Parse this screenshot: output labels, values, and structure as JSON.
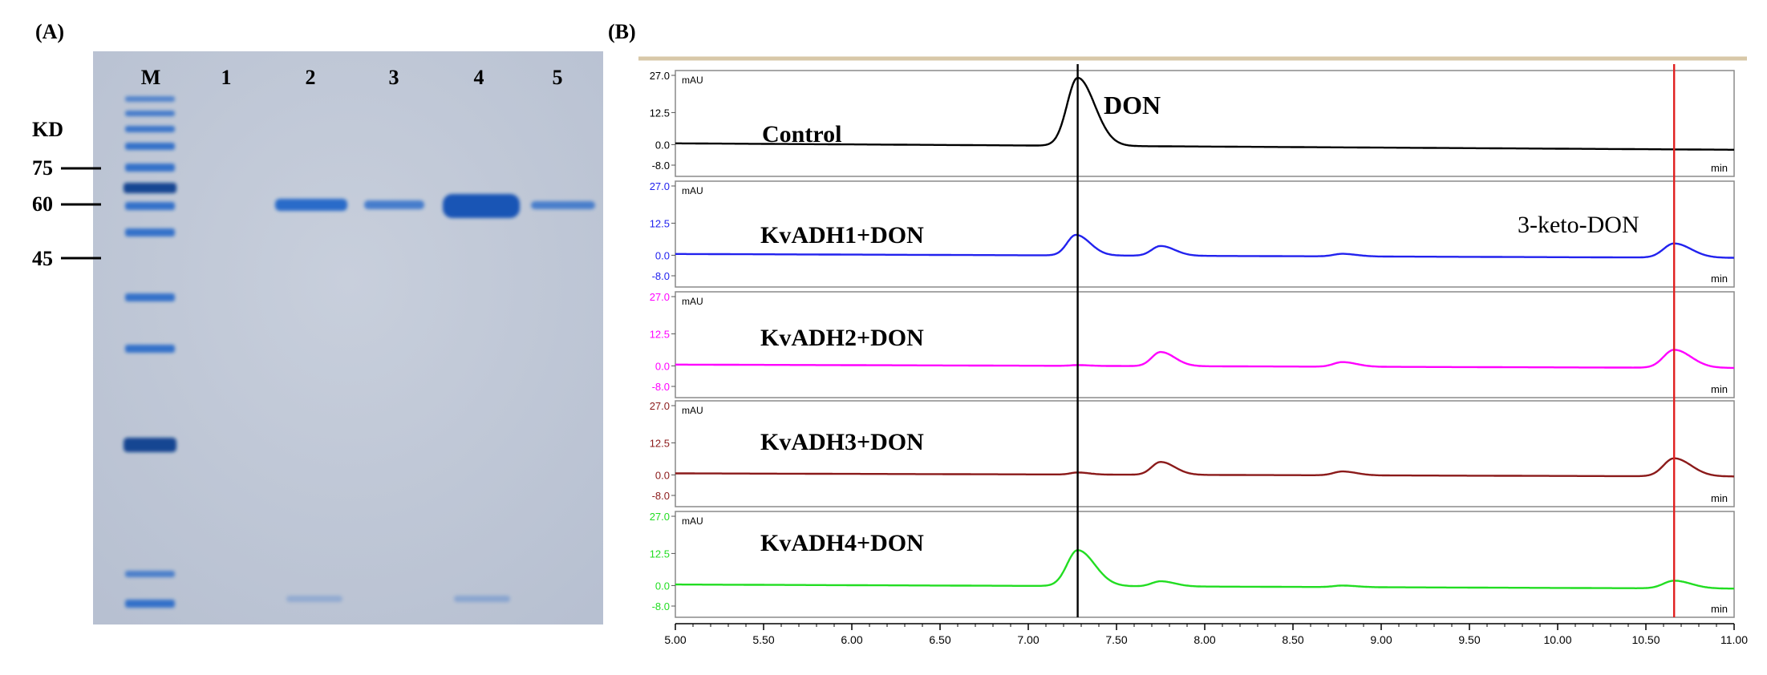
{
  "panel_a": {
    "label": "(A)",
    "lane_labels": [
      "M",
      "1",
      "2",
      "3",
      "4",
      "5"
    ],
    "kd_title": "KD",
    "kd_markers": [
      "75",
      "60",
      "45"
    ],
    "colors": {
      "gel_bg": "#c2cad8",
      "band": "#1d64c8",
      "band_dark": "#0e3f8f"
    }
  },
  "panel_b": {
    "label": "(B)",
    "chart_data": {
      "type": "line",
      "title": "",
      "xlabel": "min",
      "ylabel": "mAU",
      "xlim": [
        5.0,
        11.0
      ],
      "ylim": [
        -8.0,
        27.0
      ],
      "x_ticks": [
        "5.00",
        "5.50",
        "6.00",
        "6.50",
        "7.00",
        "7.50",
        "8.00",
        "8.50",
        "9.00",
        "9.50",
        "10.00",
        "10.50",
        "11.00"
      ],
      "y_ticks": [
        "27.0",
        "12.5",
        "0.0",
        "-8.0"
      ],
      "vertical_markers": [
        {
          "x": 7.28,
          "color": "#000000"
        },
        {
          "x": 10.66,
          "color": "#e02020"
        }
      ],
      "series": [
        {
          "name": "Control",
          "color": "#000000",
          "baseline_start": 0.5,
          "baseline_end": -2.0,
          "peaks": [
            {
              "x": 7.28,
              "height": 26.5,
              "width": 0.06
            }
          ]
        },
        {
          "name": "KvADH1+DON",
          "color": "#2222ee",
          "baseline_start": 0.5,
          "baseline_end": -1.0,
          "peaks": [
            {
              "x": 7.27,
              "height": 8.0,
              "width": 0.05
            },
            {
              "x": 7.75,
              "height": 3.8,
              "width": 0.05
            },
            {
              "x": 8.78,
              "height": 1.0,
              "width": 0.05
            },
            {
              "x": 10.66,
              "height": 5.5,
              "width": 0.06
            }
          ]
        },
        {
          "name": "KvADH2+DON",
          "color": "#ff00ff",
          "baseline_start": 0.5,
          "baseline_end": -0.8,
          "peaks": [
            {
              "x": 7.28,
              "height": 0.3,
              "width": 0.04
            },
            {
              "x": 7.75,
              "height": 5.5,
              "width": 0.05
            },
            {
              "x": 8.78,
              "height": 1.8,
              "width": 0.05
            },
            {
              "x": 10.66,
              "height": 7.0,
              "width": 0.06
            }
          ]
        },
        {
          "name": "KvADH3+DON",
          "color": "#8b1a1a",
          "baseline_start": 0.6,
          "baseline_end": -0.6,
          "peaks": [
            {
              "x": 7.28,
              "height": 0.8,
              "width": 0.04
            },
            {
              "x": 7.75,
              "height": 5.0,
              "width": 0.05
            },
            {
              "x": 8.78,
              "height": 1.5,
              "width": 0.05
            },
            {
              "x": 10.66,
              "height": 7.0,
              "width": 0.06
            }
          ]
        },
        {
          "name": "KvADH4+DON",
          "color": "#22dd22",
          "baseline_start": 0.4,
          "baseline_end": -1.2,
          "peaks": [
            {
              "x": 7.28,
              "height": 14.0,
              "width": 0.06
            },
            {
              "x": 7.75,
              "height": 2.0,
              "width": 0.05
            },
            {
              "x": 8.78,
              "height": 0.6,
              "width": 0.05
            },
            {
              "x": 10.66,
              "height": 3.0,
              "width": 0.06
            }
          ]
        }
      ],
      "annotations": [
        {
          "text": "DON"
        },
        {
          "text": "3-keto-DON"
        }
      ]
    }
  }
}
